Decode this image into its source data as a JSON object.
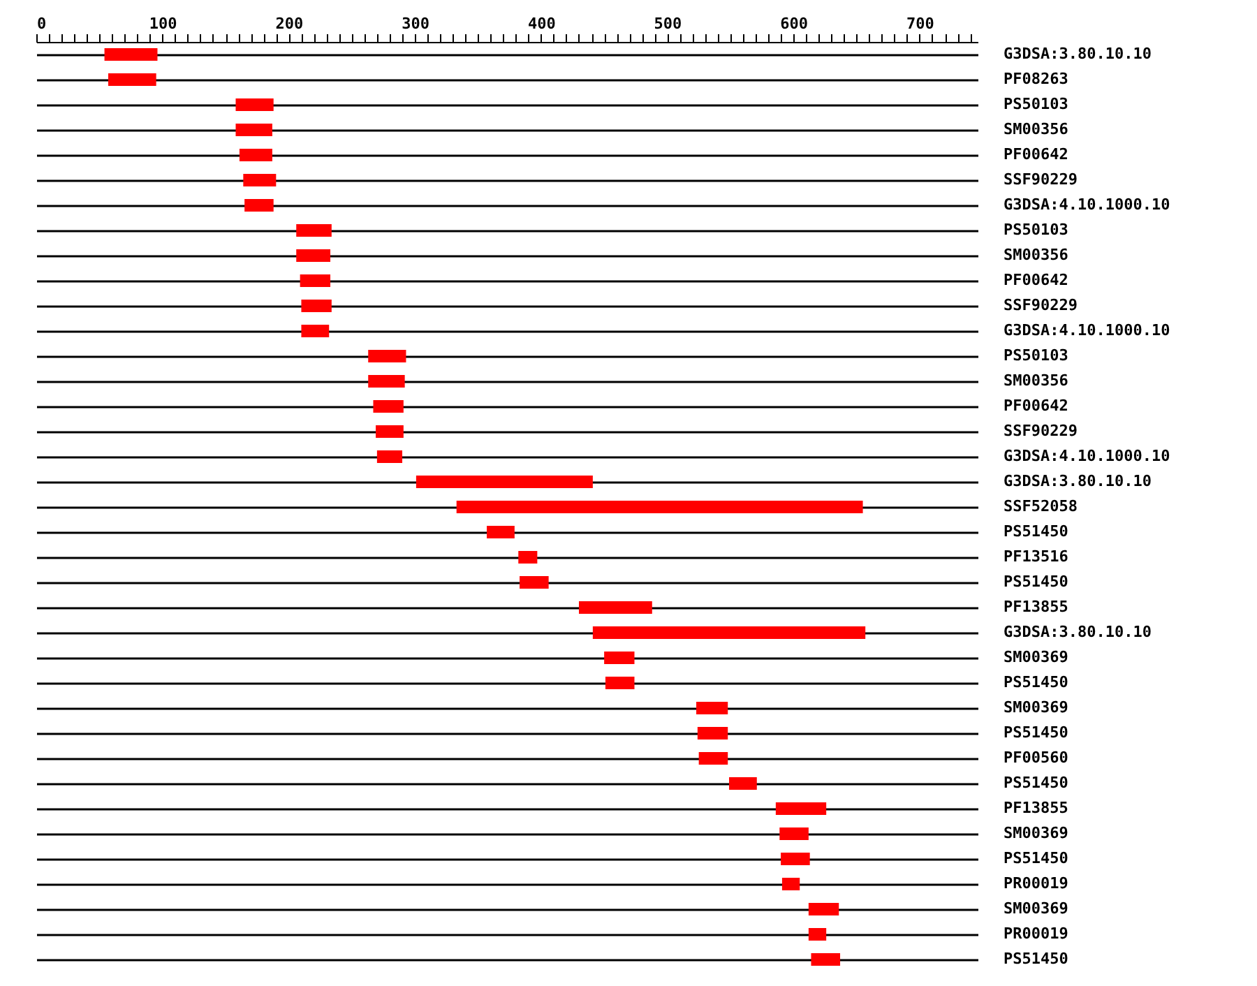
{
  "chart_data": {
    "type": "bar",
    "orientation": "horizontal",
    "color": "#ff0000",
    "grid": "y",
    "categories": [
      "G3DSA:3.80.10.10",
      "PF08263",
      "PS50103",
      "SM00356",
      "PF00642",
      "SSF90229",
      "G3DSA:4.10.1000.10",
      "PS50103",
      "SM00356",
      "PF00642",
      "SSF90229",
      "G3DSA:4.10.1000.10",
      "PS50103",
      "SM00356",
      "PF00642",
      "SSF90229",
      "G3DSA:4.10.1000.10",
      "G3DSA:3.80.10.10",
      "SSF52058",
      "PS51450",
      "PF13516",
      "PS51450",
      "PF13855",
      "G3DSA:3.80.10.10",
      "SM00369",
      "PS51450",
      "SM00369",
      "PS51450",
      "PF00560",
      "PS51450",
      "PF13855",
      "SM00369",
      "PS51450",
      "PR00019",
      "SM00369",
      "PR00019",
      "PS51450"
    ],
    "base": [
      54,
      57,
      158,
      158,
      161,
      164,
      165,
      206,
      206,
      209,
      210,
      210,
      263,
      263,
      267,
      269,
      270,
      301,
      333,
      357,
      382,
      383,
      430,
      441,
      450,
      451,
      523,
      524,
      525,
      549,
      586,
      589,
      590,
      591,
      612,
      612,
      614
    ],
    "values": [
      42,
      38,
      30,
      29,
      26,
      26,
      23,
      28,
      27,
      24,
      24,
      22,
      30,
      29,
      24,
      22,
      20,
      140,
      322,
      22,
      15,
      23,
      58,
      216,
      24,
      23,
      25,
      24,
      23,
      22,
      40,
      23,
      23,
      14,
      24,
      14,
      23
    ],
    "xlim": [
      0,
      746
    ],
    "xticks": [
      0,
      {
        "value": 10,
        "label": null
      },
      {
        "value": 20,
        "label": null
      },
      {
        "value": 30,
        "label": null
      },
      {
        "value": 40,
        "label": null
      },
      {
        "value": 50,
        "label": null
      },
      {
        "value": 60,
        "label": null
      },
      {
        "value": 70,
        "label": null
      },
      {
        "value": 80,
        "label": null
      },
      {
        "value": 90,
        "label": null
      },
      100,
      {
        "value": 110,
        "label": null
      },
      {
        "value": 120,
        "label": null
      },
      {
        "value": 130,
        "label": null
      },
      {
        "value": 140,
        "label": null
      },
      {
        "value": 150,
        "label": null
      },
      {
        "value": 160,
        "label": null
      },
      {
        "value": 170,
        "label": null
      },
      {
        "value": 180,
        "label": null
      },
      {
        "value": 190,
        "label": null
      },
      200,
      {
        "value": 210,
        "label": null
      },
      {
        "value": 220,
        "label": null
      },
      {
        "value": 230,
        "label": null
      },
      {
        "value": 240,
        "label": null
      },
      {
        "value": 250,
        "label": null
      },
      {
        "value": 260,
        "label": null
      },
      {
        "value": 270,
        "label": null
      },
      {
        "value": 280,
        "label": null
      },
      {
        "value": 290,
        "label": null
      },
      300,
      {
        "value": 310,
        "label": null
      },
      {
        "value": 320,
        "label": null
      },
      {
        "value": 330,
        "label": null
      },
      {
        "value": 340,
        "label": null
      },
      {
        "value": 350,
        "label": null
      },
      {
        "value": 360,
        "label": null
      },
      {
        "value": 370,
        "label": null
      },
      {
        "value": 380,
        "label": null
      },
      {
        "value": 390,
        "label": null
      },
      400,
      {
        "value": 410,
        "label": null
      },
      {
        "value": 420,
        "label": null
      },
      {
        "value": 430,
        "label": null
      },
      {
        "value": 440,
        "label": null
      },
      {
        "value": 450,
        "label": null
      },
      {
        "value": 460,
        "label": null
      },
      {
        "value": 470,
        "label": null
      },
      {
        "value": 480,
        "label": null
      },
      {
        "value": 490,
        "label": null
      },
      500,
      {
        "value": 510,
        "label": null
      },
      {
        "value": 520,
        "label": null
      },
      {
        "value": 530,
        "label": null
      },
      {
        "value": 540,
        "label": null
      },
      {
        "value": 550,
        "label": null
      },
      {
        "value": 560,
        "label": null
      },
      {
        "value": 570,
        "label": null
      },
      {
        "value": 580,
        "label": null
      },
      {
        "value": 590,
        "label": null
      },
      600,
      {
        "value": 610,
        "label": null
      },
      {
        "value": 620,
        "label": null
      },
      {
        "value": 630,
        "label": null
      },
      {
        "value": 640,
        "label": null
      },
      {
        "value": 650,
        "label": null
      },
      {
        "value": 660,
        "label": null
      },
      {
        "value": 670,
        "label": null
      },
      {
        "value": 680,
        "label": null
      },
      {
        "value": 690,
        "label": null
      },
      700,
      {
        "value": 710,
        "label": null
      },
      {
        "value": 720,
        "label": null
      },
      {
        "value": 730,
        "label": null
      },
      {
        "value": 740,
        "label": null
      }
    ]
  }
}
